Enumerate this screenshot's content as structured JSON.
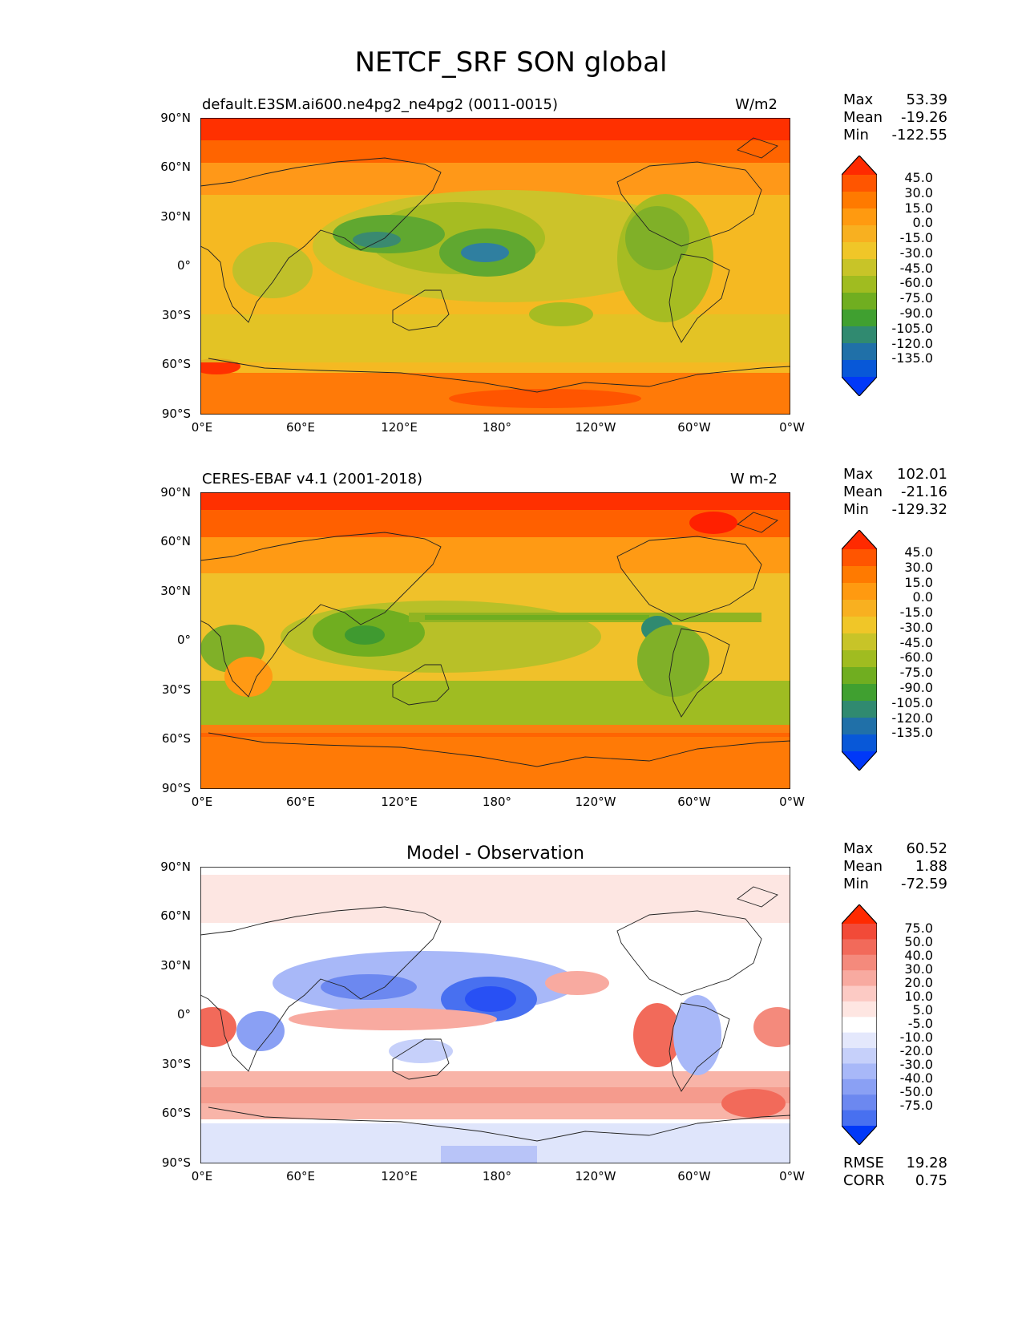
{
  "figure": {
    "title": "NETCF_SRF SON global"
  },
  "axes": {
    "lat_labels": [
      "90°N",
      "60°N",
      "30°N",
      "0°",
      "30°S",
      "60°S",
      "90°S"
    ],
    "lon_labels": [
      "0°E",
      "60°E",
      "120°E",
      "180°",
      "120°W",
      "60°W",
      "0°W"
    ]
  },
  "panels": [
    {
      "title_left": "default.E3SM.ai600.ne4pg2_ne4pg2 (0011-0015)",
      "title_right": "W/m2",
      "stats": {
        "max_label": "Max",
        "max": "53.39",
        "mean_label": "Mean",
        "mean": "-19.26",
        "min_label": "Min",
        "min": "-122.55"
      },
      "colorbar_labels": [
        "45.0",
        "30.0",
        "15.0",
        "0.0",
        "-15.0",
        "-30.0",
        "-45.0",
        "-60.0",
        "-75.0",
        "-90.0",
        "-105.0",
        "-120.0",
        "-135.0"
      ],
      "colorbar_colors": [
        "#ff2a00",
        "#ff5500",
        "#ff7a00",
        "#ff9a10",
        "#f8b020",
        "#f0c628",
        "#c8c428",
        "#a0bc20",
        "#70ae20",
        "#40a030",
        "#308a70",
        "#2070a8",
        "#0858d8",
        "#0038f8"
      ]
    },
    {
      "title_left": "CERES-EBAF v4.1 (2001-2018)",
      "title_right": "W m-2",
      "stats": {
        "max_label": "Max",
        "max": "102.01",
        "mean_label": "Mean",
        "mean": "-21.16",
        "min_label": "Min",
        "min": "-129.32"
      },
      "colorbar_labels": [
        "45.0",
        "30.0",
        "15.0",
        "0.0",
        "-15.0",
        "-30.0",
        "-45.0",
        "-60.0",
        "-75.0",
        "-90.0",
        "-105.0",
        "-120.0",
        "-135.0"
      ],
      "colorbar_colors": [
        "#ff2a00",
        "#ff5500",
        "#ff7a00",
        "#ff9a10",
        "#f8b020",
        "#f0c628",
        "#c8c428",
        "#a0bc20",
        "#70ae20",
        "#40a030",
        "#308a70",
        "#2070a8",
        "#0858d8",
        "#0038f8"
      ]
    },
    {
      "title_center": "Model - Observation",
      "stats": {
        "max_label": "Max",
        "max": "60.52",
        "mean_label": "Mean",
        "mean": "1.88",
        "min_label": "Min",
        "min": "-72.59"
      },
      "colorbar_labels": [
        "75.0",
        "50.0",
        "40.0",
        "30.0",
        "20.0",
        "10.0",
        "5.0",
        "-5.0",
        "-10.0",
        "-20.0",
        "-30.0",
        "-40.0",
        "-50.0",
        "-75.0"
      ],
      "colorbar_colors": [
        "#ff2a00",
        "#f24a38",
        "#f26a5a",
        "#f48a7c",
        "#f8aaa0",
        "#fccac4",
        "#fee6e2",
        "#ffffff",
        "#e4e8fc",
        "#c6d0fa",
        "#a8b8f8",
        "#8aa0f4",
        "#6c88f0",
        "#4870f0",
        "#0038f8"
      ],
      "metrics": {
        "rmse_label": "RMSE",
        "rmse": "19.28",
        "corr_label": "CORR",
        "corr": "0.75"
      }
    }
  ]
}
